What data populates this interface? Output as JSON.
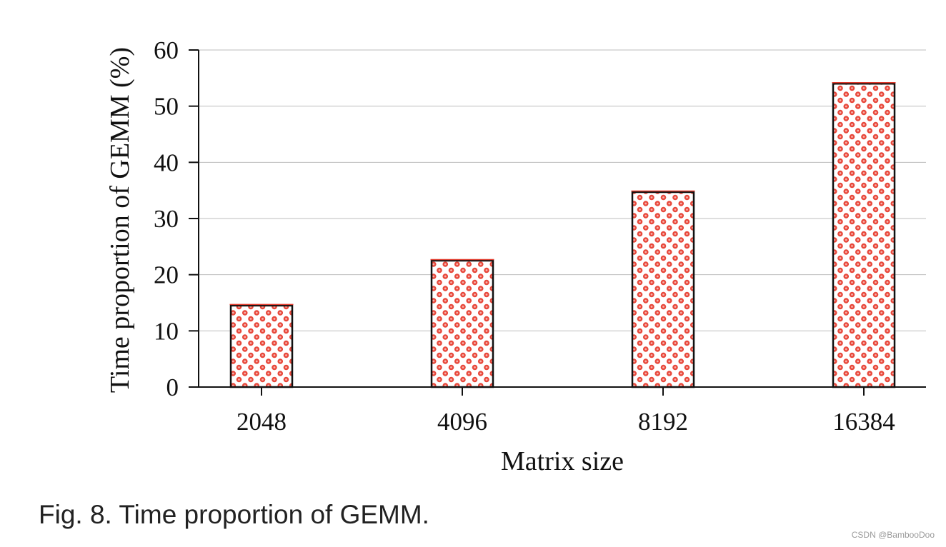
{
  "chart_data": {
    "type": "bar",
    "categories": [
      "2048",
      "4096",
      "8192",
      "16384"
    ],
    "values": [
      14.5,
      22.5,
      34.7,
      54.0
    ],
    "xlabel": "Matrix size",
    "ylabel": "Time proportion of GEMM (%)",
    "ylim": [
      0,
      60
    ],
    "yticks": [
      "0",
      "10",
      "20",
      "30",
      "40",
      "50",
      "60"
    ],
    "grid": "horizontal",
    "bar_fill": "#ffffff",
    "dot_color": "#e8483b",
    "bar_edge": "#e03a2c",
    "bar_outline": "#111111"
  },
  "caption": "Fig. 8. Time proportion of GEMM.",
  "watermark": "CSDN @BambooDoo"
}
